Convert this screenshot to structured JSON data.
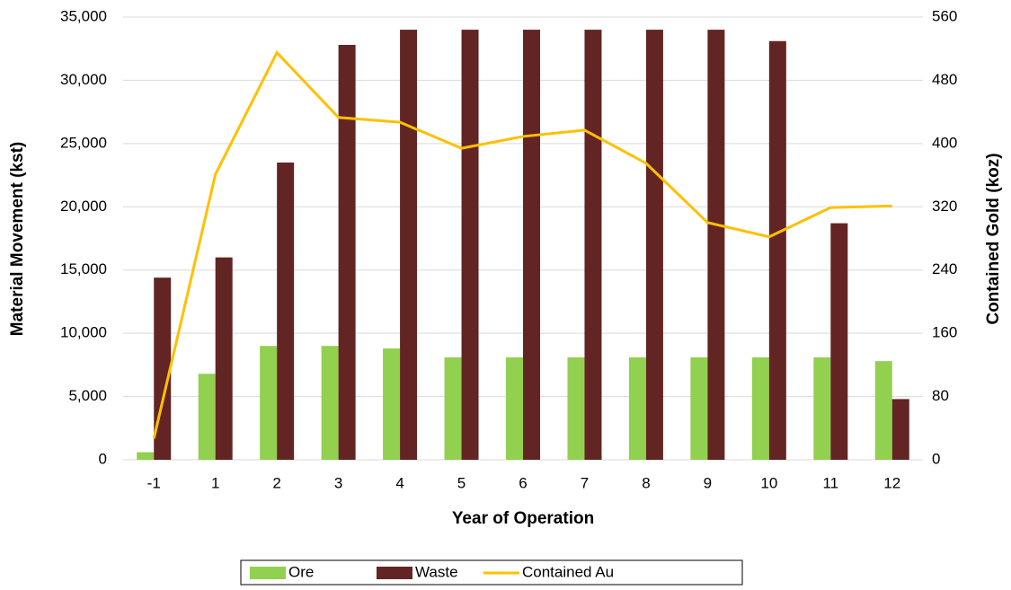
{
  "chart_data": {
    "type": "bar-line",
    "xlabel": "Year of Operation",
    "ylabel": "Material Movement (kst)",
    "y2label": "Contained Gold (koz)",
    "categories": [
      "-1",
      "1",
      "2",
      "3",
      "4",
      "5",
      "6",
      "7",
      "8",
      "9",
      "10",
      "11",
      "12"
    ],
    "series": [
      {
        "name": "Ore",
        "type": "bar",
        "color": "#92d050",
        "values": [
          600,
          6800,
          9000,
          9000,
          8800,
          8100,
          8100,
          8100,
          8100,
          8100,
          8100,
          8100,
          7800
        ]
      },
      {
        "name": "Waste",
        "type": "bar",
        "color": "#632523",
        "values": [
          14400,
          16000,
          23500,
          32800,
          34000,
          34000,
          34000,
          34000,
          34000,
          34000,
          33100,
          18700,
          4800
        ]
      },
      {
        "name": "Contained Au",
        "type": "line",
        "axis": "y2",
        "color": "#ffc000",
        "values": [
          27,
          361,
          515,
          433,
          427,
          394,
          409,
          417,
          375,
          300,
          282,
          319,
          321
        ]
      }
    ],
    "ylim": [
      0,
      35000
    ],
    "yticks": [
      0,
      {
        "value": 5000,
        "label": "5,000"
      },
      {
        "value": 10000,
        "label": "10,000"
      },
      {
        "value": 15000,
        "label": "15,000"
      },
      {
        "value": 20000,
        "label": "20,000"
      },
      {
        "value": 25000,
        "label": "25,000"
      },
      {
        "value": 30000,
        "label": "30,000"
      },
      {
        "value": 35000,
        "label": "35,000"
      }
    ],
    "y2lim": [
      0,
      560
    ],
    "y2ticks": [
      0,
      80,
      160,
      240,
      320,
      400,
      480,
      560
    ],
    "grid": true,
    "legend": "bottom"
  }
}
